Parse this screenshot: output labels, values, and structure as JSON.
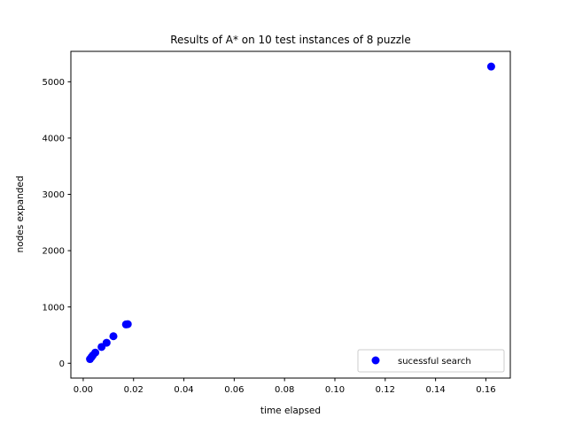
{
  "chart_data": {
    "type": "scatter",
    "title": "Results of A* on 10 test instances of 8 puzzle",
    "xlabel": "time elapsed",
    "ylabel": "nodes expanded",
    "xlim": [
      -0.0049,
      0.1697
    ],
    "ylim": [
      -263,
      5540
    ],
    "xticks": [
      0.0,
      0.02,
      0.04,
      0.06,
      0.08,
      0.1,
      0.12,
      0.14,
      0.16
    ],
    "xtick_labels": [
      "0.00",
      "0.02",
      "0.04",
      "0.06",
      "0.08",
      "0.10",
      "0.12",
      "0.14",
      "0.16"
    ],
    "yticks": [
      0,
      1000,
      2000,
      3000,
      4000,
      5000
    ],
    "ytick_labels": [
      "0",
      "1000",
      "2000",
      "3000",
      "4000",
      "5000"
    ],
    "grid": false,
    "legend_position": "lower-right",
    "series": [
      {
        "name": "sucessful search",
        "color": "#0000ff",
        "marker": "circle",
        "x": [
          0.0027,
          0.0033,
          0.0038,
          0.0048,
          0.0073,
          0.0093,
          0.012,
          0.017,
          0.0177,
          0.1621
        ],
        "y": [
          75,
          110,
          140,
          190,
          290,
          365,
          480,
          690,
          695,
          5270
        ]
      }
    ]
  }
}
